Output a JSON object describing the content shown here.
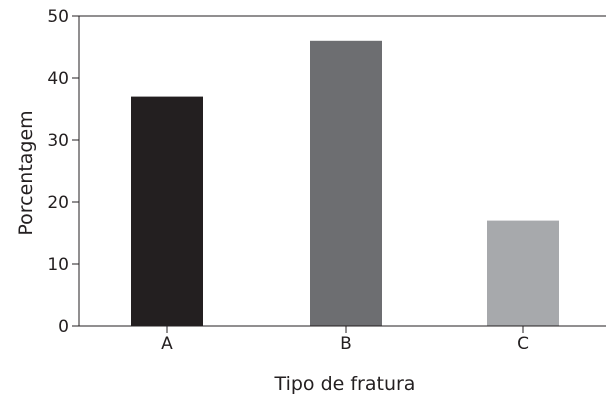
{
  "chart_data": {
    "type": "bar",
    "title": "",
    "xlabel": "Tipo de fratura",
    "ylabel": "Porcentagem",
    "categories": [
      "A",
      "B",
      "C"
    ],
    "values": [
      37,
      46,
      17
    ],
    "ylim": [
      0,
      50
    ],
    "yticks": [
      0,
      10,
      20,
      30,
      40,
      50
    ],
    "bar_colors": [
      "#231f20",
      "#6d6e71",
      "#a7a9ac"
    ],
    "grid": false,
    "legend": "none",
    "frame": "top-right-left-bottom"
  }
}
